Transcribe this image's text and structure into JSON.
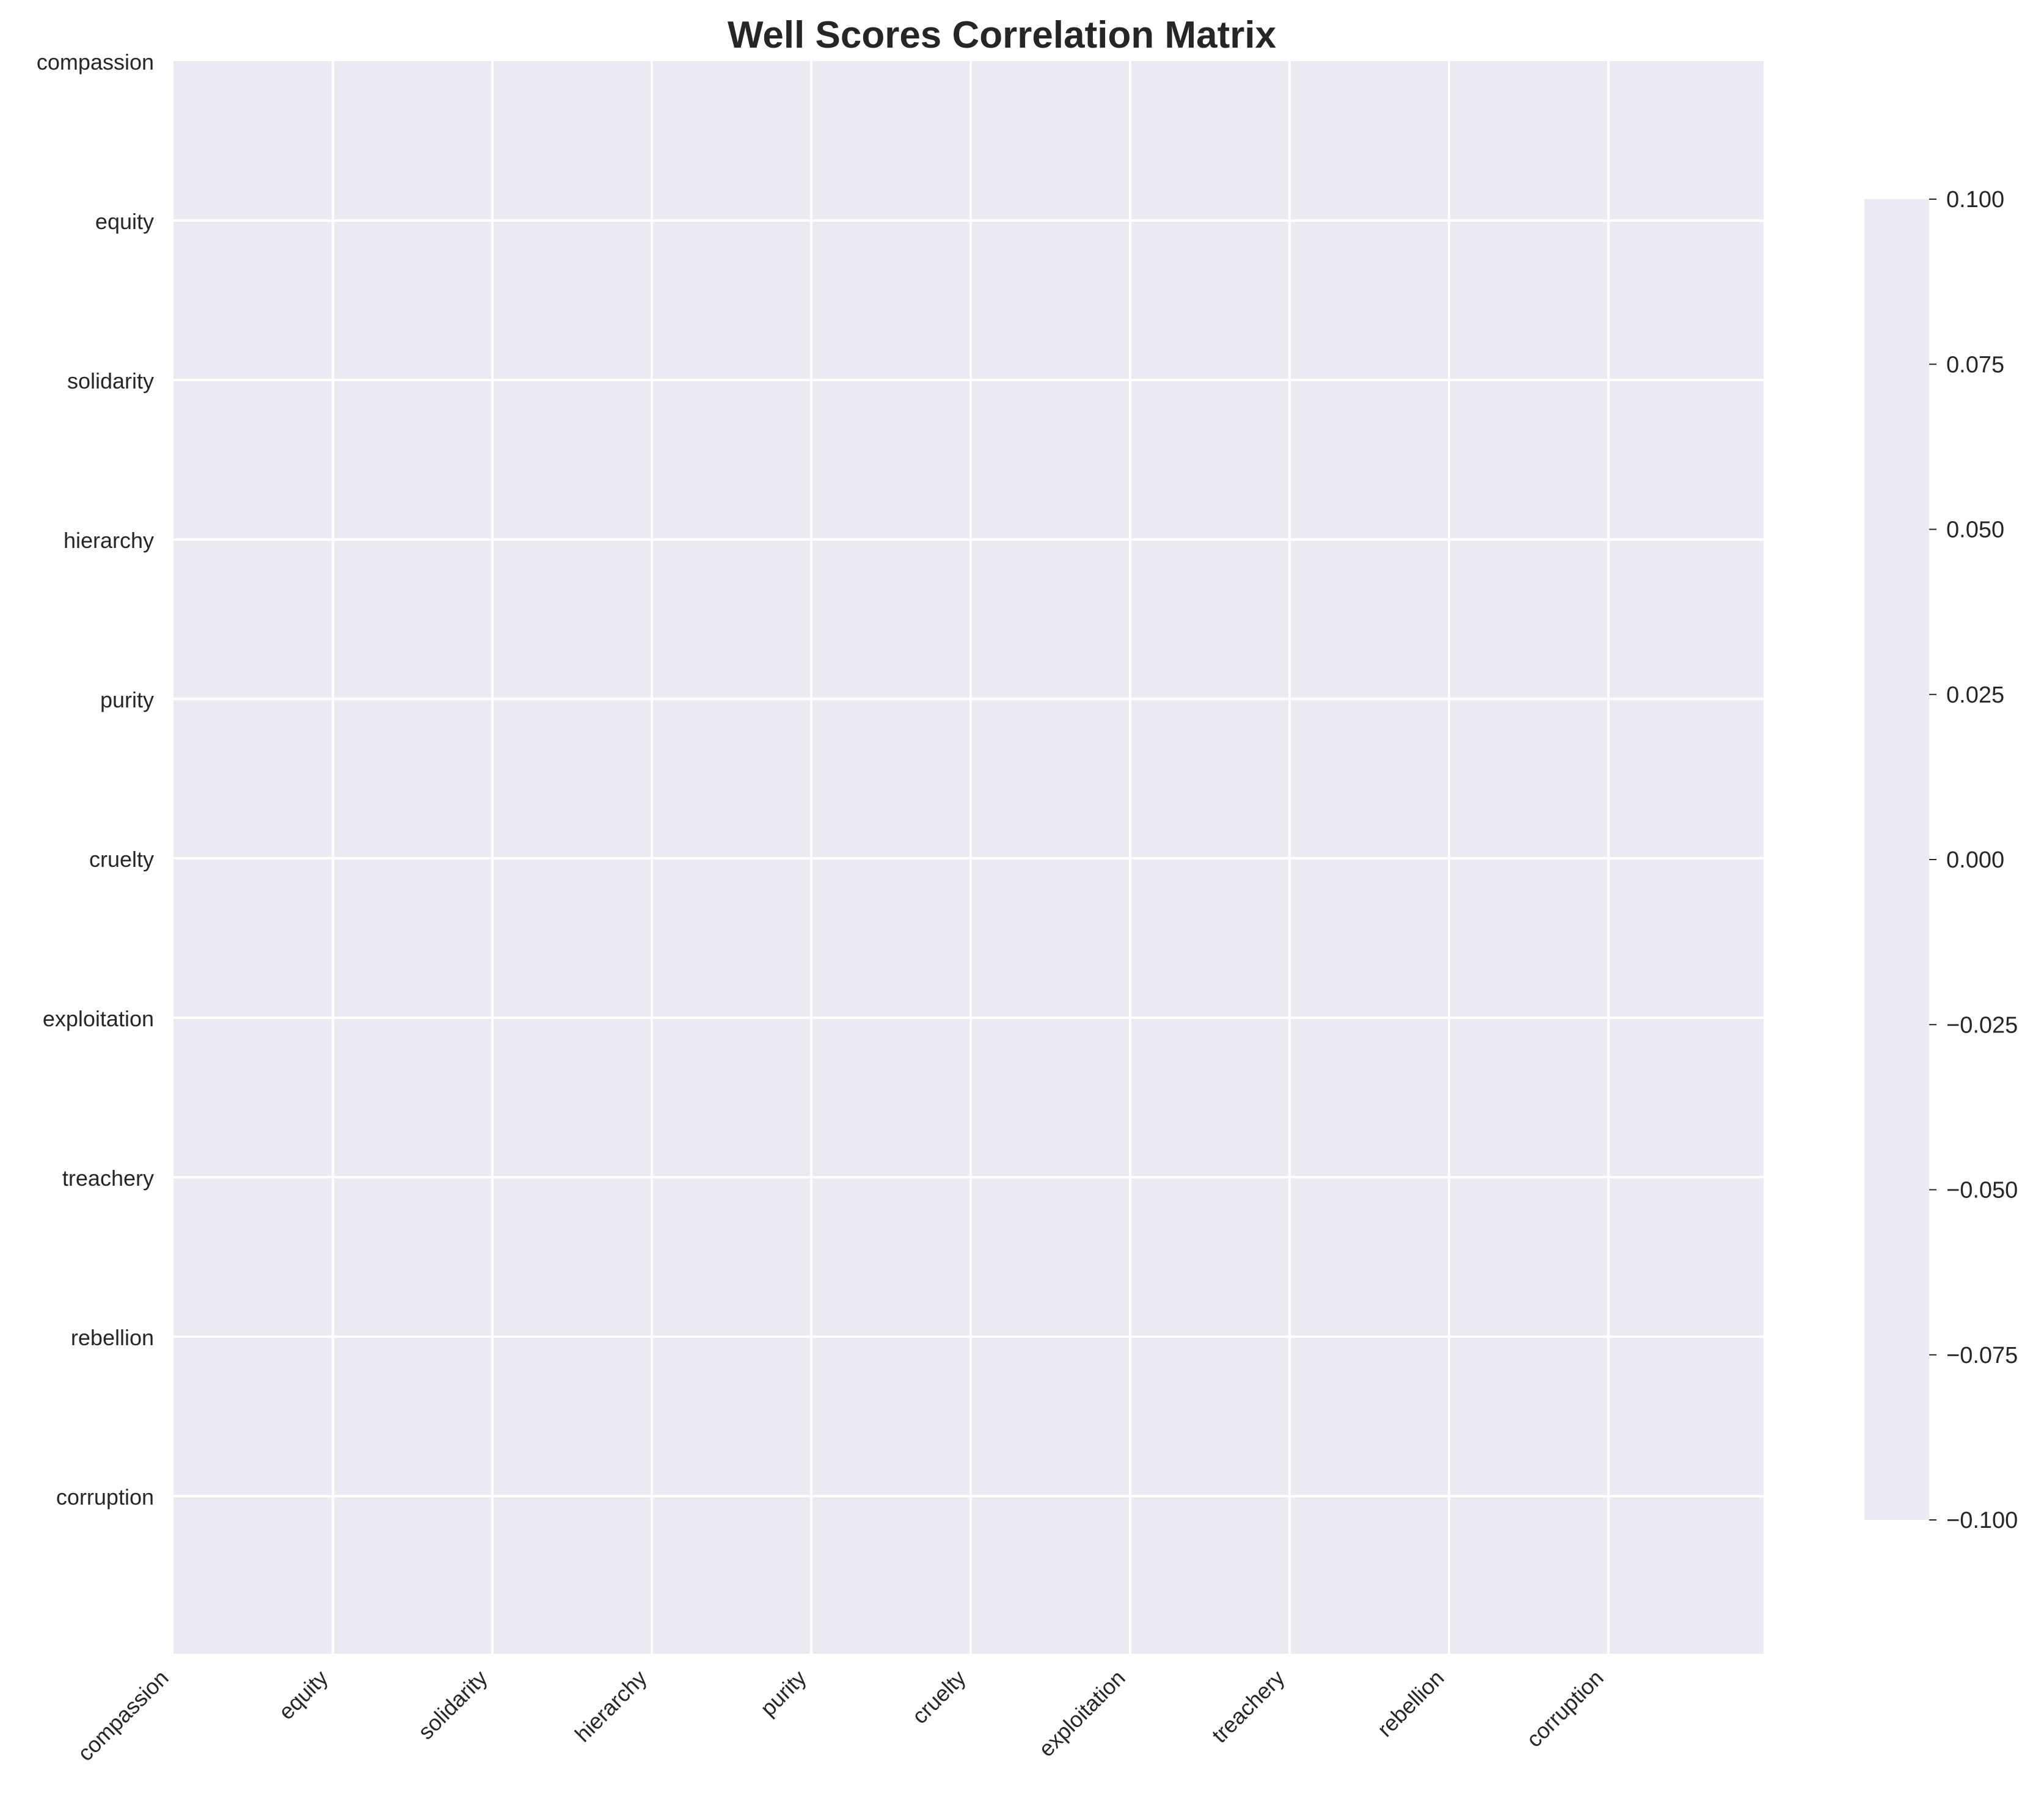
{
  "chart_data": {
    "type": "heatmap",
    "title": "Well Scores Correlation Matrix",
    "xlabel": "",
    "ylabel": "",
    "x_categories": [
      "compassion",
      "equity",
      "solidarity",
      "hierarchy",
      "purity",
      "cruelty",
      "exploitation",
      "treachery",
      "rebellion",
      "corruption"
    ],
    "y_categories": [
      "compassion",
      "equity",
      "solidarity",
      "hierarchy",
      "purity",
      "cruelty",
      "exploitation",
      "treachery",
      "rebellion",
      "corruption"
    ],
    "values": [],
    "colorbar": {
      "range": [
        -0.1,
        0.1
      ],
      "ticks": [
        0.1,
        0.075,
        0.05,
        0.025,
        0.0,
        -0.025,
        -0.05,
        -0.075,
        -0.1
      ],
      "tick_labels": [
        "0.100",
        "0.075",
        "0.050",
        "0.025",
        "0.000",
        "−0.025",
        "−0.050",
        "−0.075",
        "−0.100"
      ]
    },
    "grid": true,
    "colors": {
      "cell_background": "#eaeaf2",
      "gridline": "#ffffff",
      "text": "#262626"
    }
  }
}
